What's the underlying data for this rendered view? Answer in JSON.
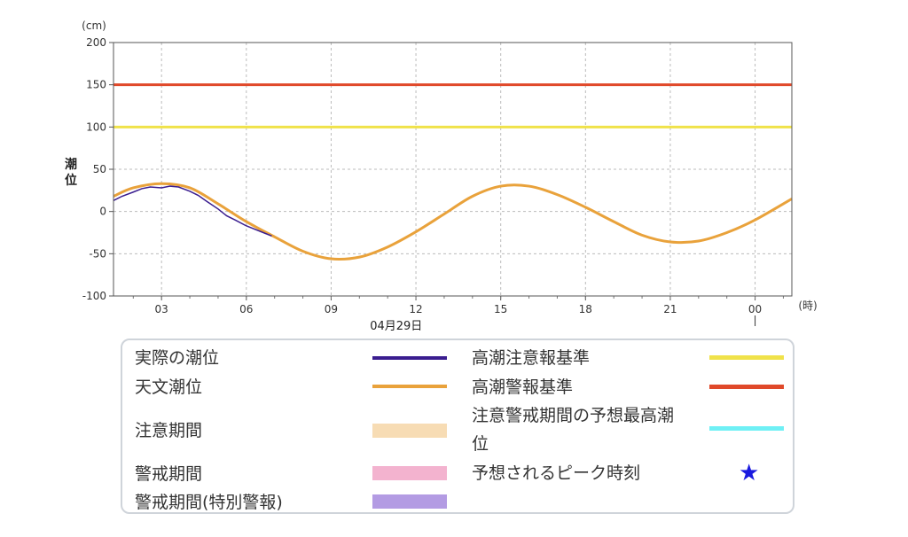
{
  "chart_data": {
    "type": "line",
    "y_unit_label": "(cm)",
    "x_unit_label": "(時)",
    "ylabel": "潮位",
    "date_label": "04月29日",
    "ylim": [
      -100,
      200
    ],
    "y_ticks": [
      200,
      150,
      100,
      50,
      0,
      -50,
      -100
    ],
    "x_hour_range": [
      1.3,
      25.3
    ],
    "x_ticks": [
      {
        "hour": 3,
        "label": "03"
      },
      {
        "hour": 6,
        "label": "06"
      },
      {
        "hour": 9,
        "label": "09"
      },
      {
        "hour": 12,
        "label": "12"
      },
      {
        "hour": 15,
        "label": "15"
      },
      {
        "hour": 18,
        "label": "18"
      },
      {
        "hour": 21,
        "label": "21"
      },
      {
        "hour": 24,
        "label": "00"
      }
    ],
    "grid": true,
    "thresholds": [
      {
        "name": "高潮警報基準",
        "value": 150,
        "color": "#e0492a"
      },
      {
        "name": "高潮注意報基準",
        "value": 100,
        "color": "#f0e24a"
      }
    ],
    "series": [
      {
        "name": "天文潮位",
        "color": "#e9a23b",
        "x": [
          1.3,
          2,
          3,
          4,
          5,
          6,
          7,
          8,
          9,
          10,
          11,
          12,
          13,
          14,
          15,
          16,
          17,
          18,
          19,
          20,
          21,
          22,
          23,
          24,
          25.3
        ],
        "values": [
          18,
          28,
          33,
          28,
          9,
          -12,
          -30,
          -47,
          -56,
          -54,
          -42,
          -24,
          -3,
          18,
          30,
          30,
          20,
          5,
          -12,
          -28,
          -36,
          -35,
          -25,
          -10,
          15
        ]
      },
      {
        "name": "実際の潮位",
        "color": "#3a1d8f",
        "x": [
          1.3,
          1.6,
          2.0,
          2.3,
          2.6,
          3.0,
          3.3,
          3.6,
          4.0,
          4.3,
          4.6,
          5.0,
          5.3,
          5.6,
          6.0,
          6.3,
          6.6,
          6.9
        ],
        "values": [
          13,
          18,
          23,
          27,
          29,
          28,
          30,
          29,
          24,
          19,
          12,
          3,
          -5,
          -10,
          -17,
          -21,
          -25,
          -29
        ]
      }
    ]
  },
  "legend": {
    "actual_tide": "実際の潮位",
    "astro_tide": "天文潮位",
    "caution_period": "注意期間",
    "warning_period": "警戒期間",
    "warning_special": "警戒期間(特別警報)",
    "storm_caution_ref": "高潮注意報基準",
    "storm_warning_ref": "高潮警報基準",
    "forecast_max_line1": "注意警戒期間の予想最高潮",
    "forecast_max_line2": "位",
    "peak_time": "予想されるピーク時刻",
    "colors": {
      "actual": "#3a1d8f",
      "astro": "#e9a23b",
      "caution": "#f7dcb4",
      "warning": "#f3b3cf",
      "special": "#b39be3",
      "caution_ref": "#f0e24a",
      "warning_ref": "#e0492a",
      "forecast_max": "#6ff0f5",
      "star": "#1a1adf"
    },
    "star_icon": "★"
  }
}
